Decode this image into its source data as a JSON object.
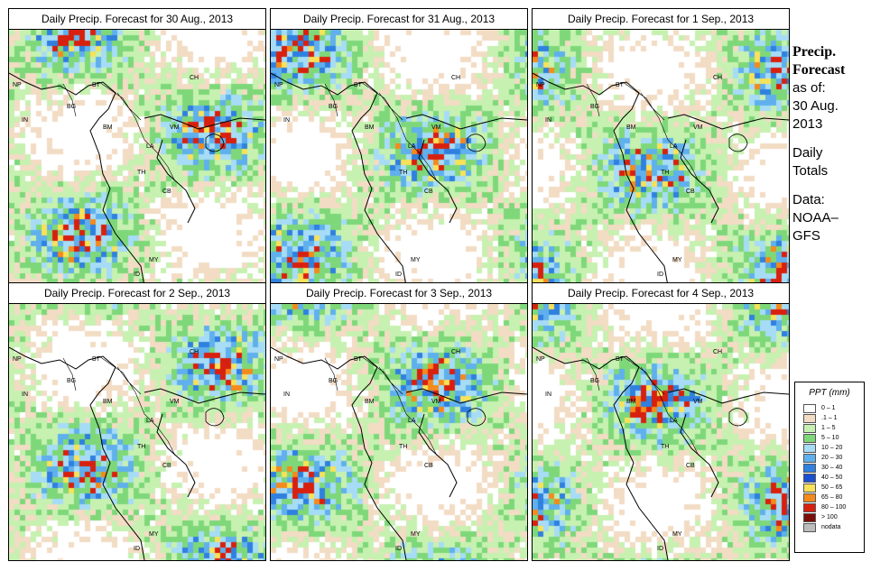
{
  "panels": [
    {
      "title": "Daily Precip. Forecast for  30 Aug., 2013"
    },
    {
      "title": "Daily Precip. Forecast for  31 Aug., 2013"
    },
    {
      "title": "Daily Precip. Forecast for  1 Sep., 2013"
    },
    {
      "title": "Daily Precip. Forecast for  2 Sep., 2013"
    },
    {
      "title": "Daily Precip. Forecast for  3 Sep., 2013"
    },
    {
      "title": "Daily Precip. Forecast for  4 Sep., 2013"
    }
  ],
  "map_labels": {
    "ch": "CH",
    "np": "NP",
    "bt": "BT",
    "in": "IN",
    "bg": "BG",
    "bm": "BM",
    "vm": "VM",
    "la": "LA",
    "th": "TH",
    "cb": "CB",
    "my": "MY",
    "id": "ID"
  },
  "sidebar": {
    "title_line1": "Precip.",
    "title_line2": "Forecast",
    "as_of": "as of:",
    "date_line1": "30 Aug.",
    "date_line2": "2013",
    "daily_line1": "Daily",
    "daily_line2": "Totals",
    "data_line1": "Data:",
    "data_line2": "NOAA–",
    "data_line3": "GFS"
  },
  "legend": {
    "title": "PPT (mm)",
    "items": [
      {
        "label": "0 – 1",
        "color": "#ffffff"
      },
      {
        "label": ".1 – 1",
        "color": "#f2dcc4"
      },
      {
        "label": "1 – 5",
        "color": "#c6f1b0"
      },
      {
        "label": "5 – 10",
        "color": "#7ed87a"
      },
      {
        "label": "10 – 20",
        "color": "#a6dcf6"
      },
      {
        "label": "20 – 30",
        "color": "#5fb0ec"
      },
      {
        "label": "30 – 40",
        "color": "#2f80df"
      },
      {
        "label": "40 – 50",
        "color": "#1a4fd0"
      },
      {
        "label": "50 – 65",
        "color": "#f7e25a"
      },
      {
        "label": "65 – 80",
        "color": "#f48a1c"
      },
      {
        "label": "80 – 100",
        "color": "#d8200e"
      },
      {
        "label": "> 100",
        "color": "#7a0f0a"
      },
      {
        "label": "nodata",
        "color": "#bcbcbc"
      }
    ]
  }
}
